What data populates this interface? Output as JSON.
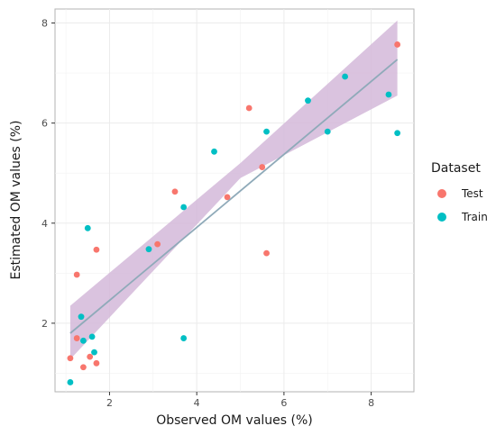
{
  "chart_data": {
    "type": "scatter",
    "xlabel": "Observed OM values (%)",
    "ylabel": "Estimated OM values (%)",
    "xlim": [
      0.75,
      8.98
    ],
    "ylim": [
      0.63,
      8.28
    ],
    "xticks": [
      2,
      4,
      6,
      8
    ],
    "yticks": [
      2,
      4,
      6,
      8
    ],
    "grid": true,
    "legend": {
      "title": "Dataset",
      "position": "right"
    },
    "series": [
      {
        "name": "Test",
        "color": "#F8766D",
        "points": [
          [
            1.1,
            1.3
          ],
          [
            1.25,
            1.7
          ],
          [
            1.25,
            2.97
          ],
          [
            1.4,
            1.12
          ],
          [
            1.55,
            1.33
          ],
          [
            1.7,
            1.2
          ],
          [
            1.7,
            3.47
          ],
          [
            3.1,
            3.58
          ],
          [
            3.5,
            4.63
          ],
          [
            4.7,
            4.52
          ],
          [
            5.2,
            6.3
          ],
          [
            5.5,
            5.12
          ],
          [
            5.6,
            3.4
          ],
          [
            8.6,
            7.57
          ]
        ]
      },
      {
        "name": "Train",
        "color": "#00BFC4",
        "points": [
          [
            1.1,
            0.82
          ],
          [
            1.35,
            2.13
          ],
          [
            1.4,
            1.65
          ],
          [
            1.5,
            3.9
          ],
          [
            1.6,
            1.73
          ],
          [
            1.65,
            1.42
          ],
          [
            2.9,
            3.48
          ],
          [
            3.7,
            4.32
          ],
          [
            3.7,
            1.7
          ],
          [
            4.4,
            5.43
          ],
          [
            5.6,
            5.83
          ],
          [
            6.55,
            6.45
          ],
          [
            7.0,
            5.83
          ],
          [
            7.4,
            6.93
          ],
          [
            8.4,
            6.57
          ],
          [
            8.6,
            5.8
          ]
        ]
      }
    ],
    "fit": {
      "line": [
        [
          1.1,
          1.8
        ],
        [
          8.6,
          7.27
        ]
      ],
      "band_lower": [
        [
          1.1,
          1.28
        ],
        [
          5.0,
          4.9
        ],
        [
          8.6,
          6.55
        ]
      ],
      "band_upper": [
        [
          1.1,
          2.35
        ],
        [
          5.0,
          5.2
        ],
        [
          8.6,
          8.05
        ]
      ],
      "line_color": "#8FAAB9",
      "band_color": "#D4B8D9"
    }
  }
}
